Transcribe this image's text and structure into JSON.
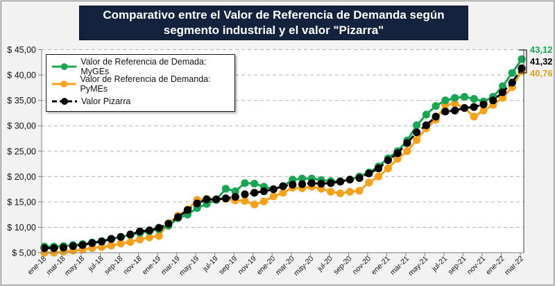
{
  "chart_data": {
    "type": "line",
    "title": "Comparativo entre el Valor de Referencia de Demanda según segmento industrial y el valor \"Pizarra\"",
    "xlabel": "",
    "ylabel": "",
    "ylim": [
      5,
      45
    ],
    "yticks": [
      5,
      10,
      15,
      20,
      25,
      30,
      35,
      40,
      45
    ],
    "ytick_labels": [
      "$ 5,00",
      "$ 10,00",
      "$ 15,00",
      "$ 20,00",
      "$ 25,00",
      "$ 30,00",
      "$ 35,00",
      "$ 40,00",
      "$ 45,00"
    ],
    "grid": "horizontal-dashed",
    "legend_position": "top-left",
    "x": [
      "ene-18",
      "feb-18",
      "mar-18",
      "abr-18",
      "may-18",
      "jun-18",
      "jul-18",
      "ago-18",
      "sep-18",
      "oct-18",
      "nov-18",
      "dic-18",
      "ene-19",
      "feb-19",
      "mar-19",
      "abr-19",
      "may-19",
      "jun-19",
      "jul-19",
      "ago-19",
      "sep-19",
      "oct-19",
      "nov-19",
      "dic-19",
      "ene-20",
      "feb-20",
      "mar-20",
      "abr-20",
      "may-20",
      "jun-20",
      "jul-20",
      "ago-20",
      "sep-20",
      "oct-20",
      "nov-20",
      "dic-20",
      "ene-21",
      "feb-21",
      "mar-21",
      "abr-21",
      "may-21",
      "jun-21",
      "jul-21",
      "ago-21",
      "sep-21",
      "oct-21",
      "nov-21",
      "dic-21",
      "ene-22",
      "feb-22",
      "mar-22"
    ],
    "xtick_labels": [
      "ene-18",
      "mar-18",
      "may-18",
      "jul-18",
      "sep-18",
      "nov-18",
      "ene-19",
      "mar-19",
      "may-19",
      "jul-19",
      "sep-19",
      "nov-19",
      "ene-20",
      "mar-20",
      "may-20",
      "jul-20",
      "sep-20",
      "nov-20",
      "ene-21",
      "mar-21",
      "may-21",
      "jul-21",
      "sep-21",
      "nov-21",
      "ene-22",
      "mar-22"
    ],
    "series": [
      {
        "name": "Valor de Referencia de Demada: MyGEs",
        "color": "#1aa555",
        "style": "solid",
        "values": [
          6.2,
          6.2,
          6.3,
          6.5,
          6.7,
          7.0,
          7.3,
          7.7,
          8.1,
          8.5,
          8.9,
          9.2,
          9.6,
          10.3,
          11.8,
          12.5,
          13.8,
          14.6,
          15.4,
          17.6,
          17.1,
          18.7,
          18.6,
          18.0,
          17.5,
          18.1,
          19.4,
          19.6,
          19.6,
          19.3,
          19.1,
          19.1,
          19.4,
          20.0,
          20.8,
          22.0,
          23.6,
          25.0,
          27.1,
          30.1,
          32.2,
          33.9,
          35.0,
          35.5,
          35.7,
          35.3,
          34.8,
          35.7,
          37.8,
          40.4,
          43.12
        ],
        "end_label": "43,12"
      },
      {
        "name": "Valor de Referencia de Demanda: PyMEs",
        "color": "#f7a11a",
        "style": "solid",
        "values": [
          5.0,
          5.0,
          5.2,
          5.4,
          5.6,
          5.9,
          6.1,
          6.4,
          6.8,
          7.1,
          7.6,
          8.0,
          8.3,
          10.8,
          12.3,
          13.5,
          15.4,
          15.6,
          15.5,
          15.6,
          15.3,
          15.2,
          14.5,
          15.1,
          16.1,
          16.8,
          17.8,
          17.7,
          18.0,
          17.6,
          17.0,
          16.7,
          17.0,
          17.2,
          18.8,
          20.0,
          21.6,
          23.5,
          25.0,
          27.2,
          29.5,
          31.2,
          34.1,
          34.4,
          33.5,
          31.8,
          33.0,
          34.1,
          35.5,
          37.6,
          40.76
        ],
        "end_label": "40,76"
      },
      {
        "name": "Valor Pizarra",
        "color": "#000000",
        "style": "dashed",
        "values": [
          5.9,
          5.9,
          6.0,
          6.3,
          6.5,
          6.9,
          7.2,
          7.7,
          8.1,
          8.6,
          9.2,
          9.4,
          9.9,
          10.7,
          12.0,
          13.4,
          14.7,
          15.5,
          15.5,
          15.7,
          16.0,
          16.5,
          16.8,
          17.1,
          17.5,
          18.1,
          18.4,
          18.5,
          18.7,
          18.6,
          18.7,
          19.0,
          19.4,
          19.7,
          20.6,
          21.6,
          23.2,
          24.6,
          26.6,
          28.7,
          30.1,
          31.8,
          32.8,
          33.0,
          33.5,
          33.7,
          34.2,
          35.0,
          36.6,
          38.5,
          41.32
        ],
        "end_label": "41,32"
      }
    ]
  }
}
